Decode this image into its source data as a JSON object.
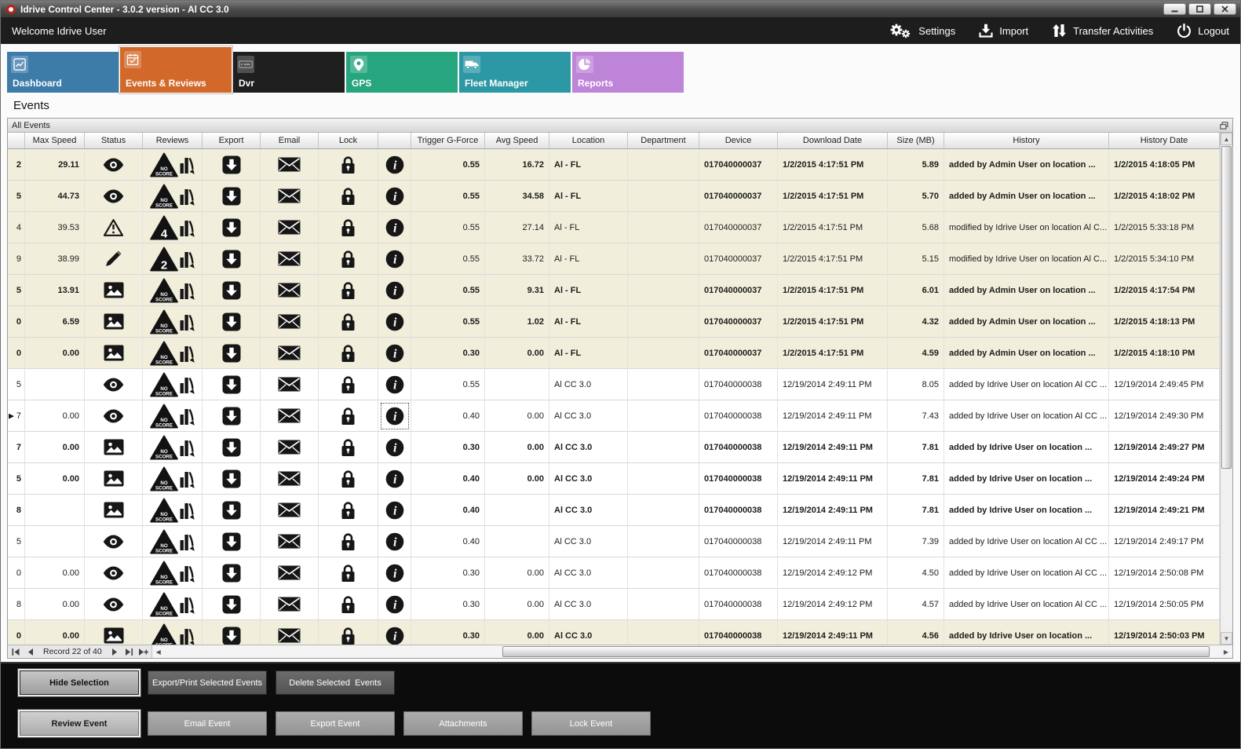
{
  "window": {
    "title": "Idrive Control Center - 3.0.2 version - Al CC 3.0",
    "buttons": [
      "minimize-icon",
      "maximize-icon",
      "close-icon"
    ]
  },
  "topbar": {
    "welcome": "Welcome Idrive User",
    "actions": [
      {
        "label": "Settings",
        "icon": "settings-gears-icon"
      },
      {
        "label": "Import",
        "icon": "import-icon"
      },
      {
        "label": "Transfer Activities",
        "icon": "transfer-icon"
      },
      {
        "label": "Logout",
        "icon": "power-icon"
      }
    ]
  },
  "tabs": [
    {
      "label": "Dashboard",
      "color": "#3d7ba9",
      "icon": "dashboard-chart-icon",
      "active": false
    },
    {
      "label": "Events & Reviews",
      "color": "#d2692a",
      "icon": "events-calendar-icon",
      "active": true
    },
    {
      "label": "Dvr",
      "color": "#1f1f1f",
      "icon": "dvr-icon",
      "active": false
    },
    {
      "label": "GPS",
      "color": "#27a57f",
      "icon": "gps-pin-icon",
      "active": false
    },
    {
      "label": "Fleet Manager",
      "color": "#2d98a5",
      "icon": "fleet-truck-icon",
      "active": false
    },
    {
      "label": "Reports",
      "color": "#bd84d8",
      "icon": "reports-pie-icon",
      "active": false
    }
  ],
  "page": {
    "section_title": "Events",
    "panel_title": "All Events"
  },
  "colors": {
    "row_highlight": "#f1efdb"
  },
  "table": {
    "headers": [
      "",
      "Max Speed",
      "Status",
      "Reviews",
      "Export",
      "Email",
      "Lock",
      "",
      "Trigger G-Force",
      "Avg Speed",
      "Location",
      "Department",
      "Device",
      "Download Date",
      "Size (MB)",
      "History",
      "History Date"
    ],
    "row_action_icons": {
      "export": "export-icon",
      "email": "email-icon",
      "lock": "lock-icon",
      "info": "info-icon"
    },
    "review_icons": [
      "review-score-triangle-icon",
      "review-chart-icon"
    ],
    "rows": [
      {
        "edge": "2",
        "max_speed": "29.11",
        "status_icon": "eye-icon",
        "review_badge": "NO SCORE",
        "trigger_g_force": "0.55",
        "avg_speed": "16.72",
        "location": "Al - FL",
        "department": "",
        "device": "017040000037",
        "download_date": "1/2/2015 4:17:51 PM",
        "size_mb": "5.89",
        "history": "added by Admin User on location ...",
        "history_date": "1/2/2015 4:18:05 PM",
        "unread": true,
        "highlighted": true,
        "current": false
      },
      {
        "edge": "5",
        "max_speed": "44.73",
        "status_icon": "eye-icon",
        "review_badge": "NO SCORE",
        "trigger_g_force": "0.55",
        "avg_speed": "34.58",
        "location": "Al - FL",
        "department": "",
        "device": "017040000037",
        "download_date": "1/2/2015 4:17:51 PM",
        "size_mb": "5.70",
        "history": "added by Admin User on location ...",
        "history_date": "1/2/2015 4:18:02 PM",
        "unread": true,
        "highlighted": true,
        "current": false
      },
      {
        "edge": "4",
        "max_speed": "39.53",
        "status_icon": "warning-icon",
        "review_badge": "4",
        "trigger_g_force": "0.55",
        "avg_speed": "27.14",
        "location": "Al - FL",
        "department": "",
        "device": "017040000037",
        "download_date": "1/2/2015 4:17:51 PM",
        "size_mb": "5.68",
        "history": "modified by Idrive User on location Al C...",
        "history_date": "1/2/2015 5:33:18 PM",
        "unread": false,
        "highlighted": true,
        "current": false
      },
      {
        "edge": "9",
        "max_speed": "38.99",
        "status_icon": "pencil-icon",
        "review_badge": "2",
        "trigger_g_force": "0.55",
        "avg_speed": "33.72",
        "location": "Al - FL",
        "department": "",
        "device": "017040000037",
        "download_date": "1/2/2015 4:17:51 PM",
        "size_mb": "5.15",
        "history": "modified by Idrive User on location Al C...",
        "history_date": "1/2/2015 5:34:10 PM",
        "unread": false,
        "highlighted": true,
        "current": false
      },
      {
        "edge": "5",
        "max_speed": "13.91",
        "status_icon": "image-icon",
        "review_badge": "NO SCORE",
        "trigger_g_force": "0.55",
        "avg_speed": "9.31",
        "location": "Al - FL",
        "department": "",
        "device": "017040000037",
        "download_date": "1/2/2015 4:17:51 PM",
        "size_mb": "6.01",
        "history": "added by Admin User on location ...",
        "history_date": "1/2/2015 4:17:54 PM",
        "unread": true,
        "highlighted": true,
        "current": false
      },
      {
        "edge": "0",
        "max_speed": "6.59",
        "status_icon": "image-icon",
        "review_badge": "NO SCORE",
        "trigger_g_force": "0.55",
        "avg_speed": "1.02",
        "location": "Al - FL",
        "department": "",
        "device": "017040000037",
        "download_date": "1/2/2015 4:17:51 PM",
        "size_mb": "4.32",
        "history": "added by Admin User on location ...",
        "history_date": "1/2/2015 4:18:13 PM",
        "unread": true,
        "highlighted": true,
        "current": false
      },
      {
        "edge": "0",
        "max_speed": "0.00",
        "status_icon": "image-icon",
        "review_badge": "NO SCORE",
        "trigger_g_force": "0.30",
        "avg_speed": "0.00",
        "location": "Al - FL",
        "department": "",
        "device": "017040000037",
        "download_date": "1/2/2015 4:17:51 PM",
        "size_mb": "4.59",
        "history": "added by Admin User on location ...",
        "history_date": "1/2/2015 4:18:10 PM",
        "unread": true,
        "highlighted": true,
        "current": false
      },
      {
        "edge": "5",
        "max_speed": "",
        "status_icon": "eye-icon",
        "review_badge": "NO SCORE",
        "trigger_g_force": "0.55",
        "avg_speed": "",
        "location": "Al CC 3.0",
        "department": "",
        "device": "017040000038",
        "download_date": "12/19/2014 2:49:11 PM",
        "size_mb": "8.05",
        "history": "added by Idrive User on location Al CC ...",
        "history_date": "12/19/2014 2:49:45 PM",
        "unread": false,
        "highlighted": false,
        "current": false
      },
      {
        "edge": "7",
        "max_speed": "0.00",
        "status_icon": "eye-icon",
        "review_badge": "NO SCORE",
        "trigger_g_force": "0.40",
        "avg_speed": "0.00",
        "location": "Al CC 3.0",
        "department": "",
        "device": "017040000038",
        "download_date": "12/19/2014 2:49:11 PM",
        "size_mb": "7.43",
        "history": "added by Idrive User on location Al CC ...",
        "history_date": "12/19/2014 2:49:30 PM",
        "unread": false,
        "highlighted": false,
        "current": true
      },
      {
        "edge": "7",
        "max_speed": "0.00",
        "status_icon": "image-icon",
        "review_badge": "NO SCORE",
        "trigger_g_force": "0.30",
        "avg_speed": "0.00",
        "location": "Al CC 3.0",
        "department": "",
        "device": "017040000038",
        "download_date": "12/19/2014 2:49:11 PM",
        "size_mb": "7.81",
        "history": "added by Idrive User on location ...",
        "history_date": "12/19/2014 2:49:27 PM",
        "unread": true,
        "highlighted": false,
        "current": false
      },
      {
        "edge": "5",
        "max_speed": "0.00",
        "status_icon": "image-icon",
        "review_badge": "NO SCORE",
        "trigger_g_force": "0.40",
        "avg_speed": "0.00",
        "location": "Al CC 3.0",
        "department": "",
        "device": "017040000038",
        "download_date": "12/19/2014 2:49:11 PM",
        "size_mb": "7.81",
        "history": "added by Idrive User on location ...",
        "history_date": "12/19/2014 2:49:24 PM",
        "unread": true,
        "highlighted": false,
        "current": false
      },
      {
        "edge": "8",
        "max_speed": "",
        "status_icon": "image-icon",
        "review_badge": "NO SCORE",
        "trigger_g_force": "0.40",
        "avg_speed": "",
        "location": "Al CC 3.0",
        "department": "",
        "device": "017040000038",
        "download_date": "12/19/2014 2:49:11 PM",
        "size_mb": "7.81",
        "history": "added by Idrive User on location ...",
        "history_date": "12/19/2014 2:49:21 PM",
        "unread": true,
        "highlighted": false,
        "current": false
      },
      {
        "edge": "5",
        "max_speed": "",
        "status_icon": "eye-icon",
        "review_badge": "NO SCORE",
        "trigger_g_force": "0.40",
        "avg_speed": "",
        "location": "Al CC 3.0",
        "department": "",
        "device": "017040000038",
        "download_date": "12/19/2014 2:49:11 PM",
        "size_mb": "7.39",
        "history": "added by Idrive User on location Al CC ...",
        "history_date": "12/19/2014 2:49:17 PM",
        "unread": false,
        "highlighted": false,
        "current": false
      },
      {
        "edge": "0",
        "max_speed": "0.00",
        "status_icon": "eye-icon",
        "review_badge": "NO SCORE",
        "trigger_g_force": "0.30",
        "avg_speed": "0.00",
        "location": "Al CC 3.0",
        "department": "",
        "device": "017040000038",
        "download_date": "12/19/2014 2:49:12 PM",
        "size_mb": "4.50",
        "history": "added by Idrive User on location Al CC ...",
        "history_date": "12/19/2014 2:50:08 PM",
        "unread": false,
        "highlighted": false,
        "current": false
      },
      {
        "edge": "8",
        "max_speed": "0.00",
        "status_icon": "eye-icon",
        "review_badge": "NO SCORE",
        "trigger_g_force": "0.30",
        "avg_speed": "0.00",
        "location": "Al CC 3.0",
        "department": "",
        "device": "017040000038",
        "download_date": "12/19/2014 2:49:12 PM",
        "size_mb": "4.57",
        "history": "added by Idrive User on location Al CC ...",
        "history_date": "12/19/2014 2:50:05 PM",
        "unread": false,
        "highlighted": false,
        "current": false
      },
      {
        "edge": "0",
        "max_speed": "0.00",
        "status_icon": "image-icon",
        "review_badge": "NO SCORE",
        "trigger_g_force": "0.30",
        "avg_speed": "0.00",
        "location": "Al CC 3.0",
        "department": "",
        "device": "017040000038",
        "download_date": "12/19/2014 2:49:11 PM",
        "size_mb": "4.56",
        "history": "added by Idrive User on location ...",
        "history_date": "12/19/2014 2:50:03 PM",
        "unread": true,
        "highlighted": true,
        "current": false
      }
    ]
  },
  "pager": {
    "record_text": "Record 22 of 40",
    "left_buttons": [
      "first-record-icon",
      "prev-record-icon"
    ],
    "right_buttons": [
      "next-record-icon",
      "last-record-icon",
      "new-record-icon"
    ]
  },
  "footer": {
    "selection_buttons": [
      "Hide Selection",
      "Export/Print Selected Events",
      "Delete Selected  Events"
    ],
    "event_buttons": [
      "Review Event",
      "Email Event",
      "Export Event",
      "Attachments",
      "Lock Event"
    ]
  }
}
